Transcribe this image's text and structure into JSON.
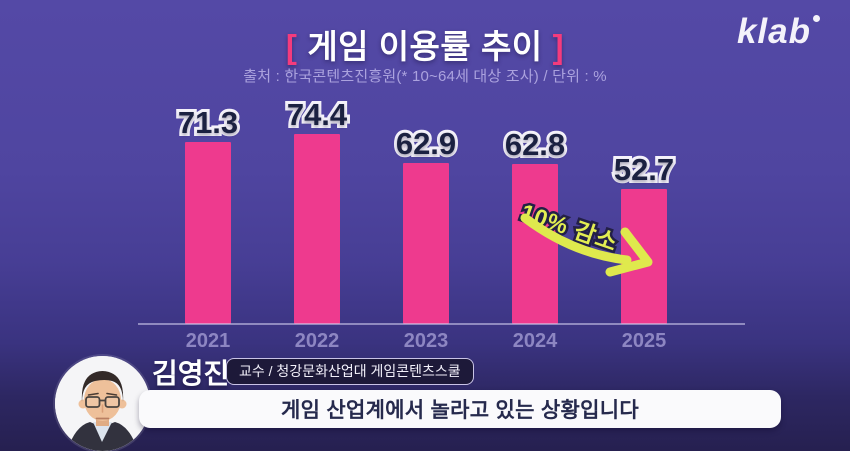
{
  "header": {
    "bracket_left": "[",
    "title": "게임 이용률 추이",
    "bracket_right": "]",
    "source": "출처 : 한국콘텐츠진흥원(* 10~64세 대상 조사) / 단위 : %",
    "logo_text": "klab"
  },
  "chart_data": {
    "type": "bar",
    "categories": [
      "2021",
      "2022",
      "2023",
      "2024",
      "2025"
    ],
    "values": [
      71.3,
      74.4,
      62.9,
      62.8,
      52.7
    ],
    "title": "게임 이용률 추이",
    "xlabel": "",
    "ylabel": "",
    "unit": "%",
    "ylim": [
      0,
      80
    ],
    "grid": false,
    "legend": false,
    "bar_color": "#ee3a8e",
    "annotation": {
      "text": "10% 감소",
      "between": [
        "2024",
        "2025"
      ]
    }
  },
  "speaker": {
    "name": "김영진",
    "affiliation": "교수 / 청강문화산업대 게임콘텐츠스쿨"
  },
  "caption": {
    "text": "게임 산업계에서 놀라고 있는 상황입니다"
  },
  "colors": {
    "background_top": "#5449a6",
    "background_bottom": "#262050",
    "bar_pink": "#ee3a8e",
    "title_bracket_pink": "#f43b7d",
    "annotation_yellow": "#e3ee52",
    "source_lavender": "#aba2de",
    "value_label_navy": "#1b2141",
    "caption_background": "#fafafc",
    "caption_text": "#262a4d"
  }
}
